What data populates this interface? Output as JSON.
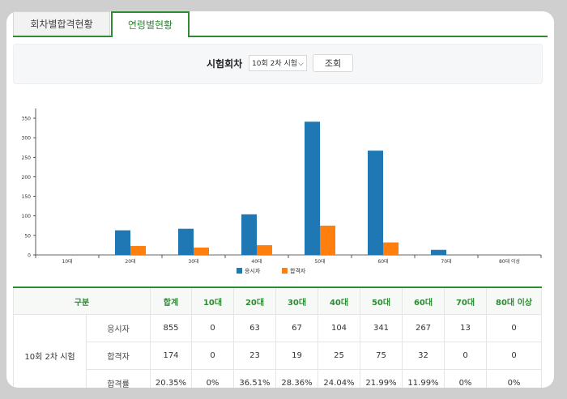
{
  "tabs": [
    {
      "label": "회차별합격현황"
    },
    {
      "label": "연령별현황"
    }
  ],
  "search": {
    "label": "시험회차",
    "selected": "10회 2차 시험",
    "button": "조회"
  },
  "chart_data": {
    "type": "bar",
    "categories": [
      "10대",
      "20대",
      "30대",
      "40대",
      "50대",
      "60대",
      "70대",
      "80대 이상"
    ],
    "series": [
      {
        "name": "응시자",
        "values": [
          0,
          63,
          67,
          104,
          341,
          267,
          13,
          0
        ],
        "color": "#1f77b4"
      },
      {
        "name": "합격자",
        "values": [
          0,
          23,
          19,
          25,
          75,
          32,
          0,
          0
        ],
        "color": "#ff7f0e"
      }
    ],
    "ylim": [
      0,
      375
    ],
    "yticks": [
      0,
      50,
      100,
      150,
      200,
      250,
      300,
      350
    ],
    "legend": "bottom"
  },
  "table": {
    "headers": [
      "구분",
      "합계",
      "10대",
      "20대",
      "30대",
      "40대",
      "50대",
      "60대",
      "70대",
      "80대 이상"
    ],
    "exam": "10회 2차 시험",
    "rows": [
      {
        "label": "응시자",
        "values": [
          "855",
          "0",
          "63",
          "67",
          "104",
          "341",
          "267",
          "13",
          "0"
        ]
      },
      {
        "label": "합격자",
        "values": [
          "174",
          "0",
          "23",
          "19",
          "25",
          "75",
          "32",
          "0",
          "0"
        ]
      },
      {
        "label": "합격률",
        "values": [
          "20.35%",
          "0%",
          "36.51%",
          "28.36%",
          "24.04%",
          "21.99%",
          "11.99%",
          "0%",
          "0%"
        ]
      }
    ]
  }
}
